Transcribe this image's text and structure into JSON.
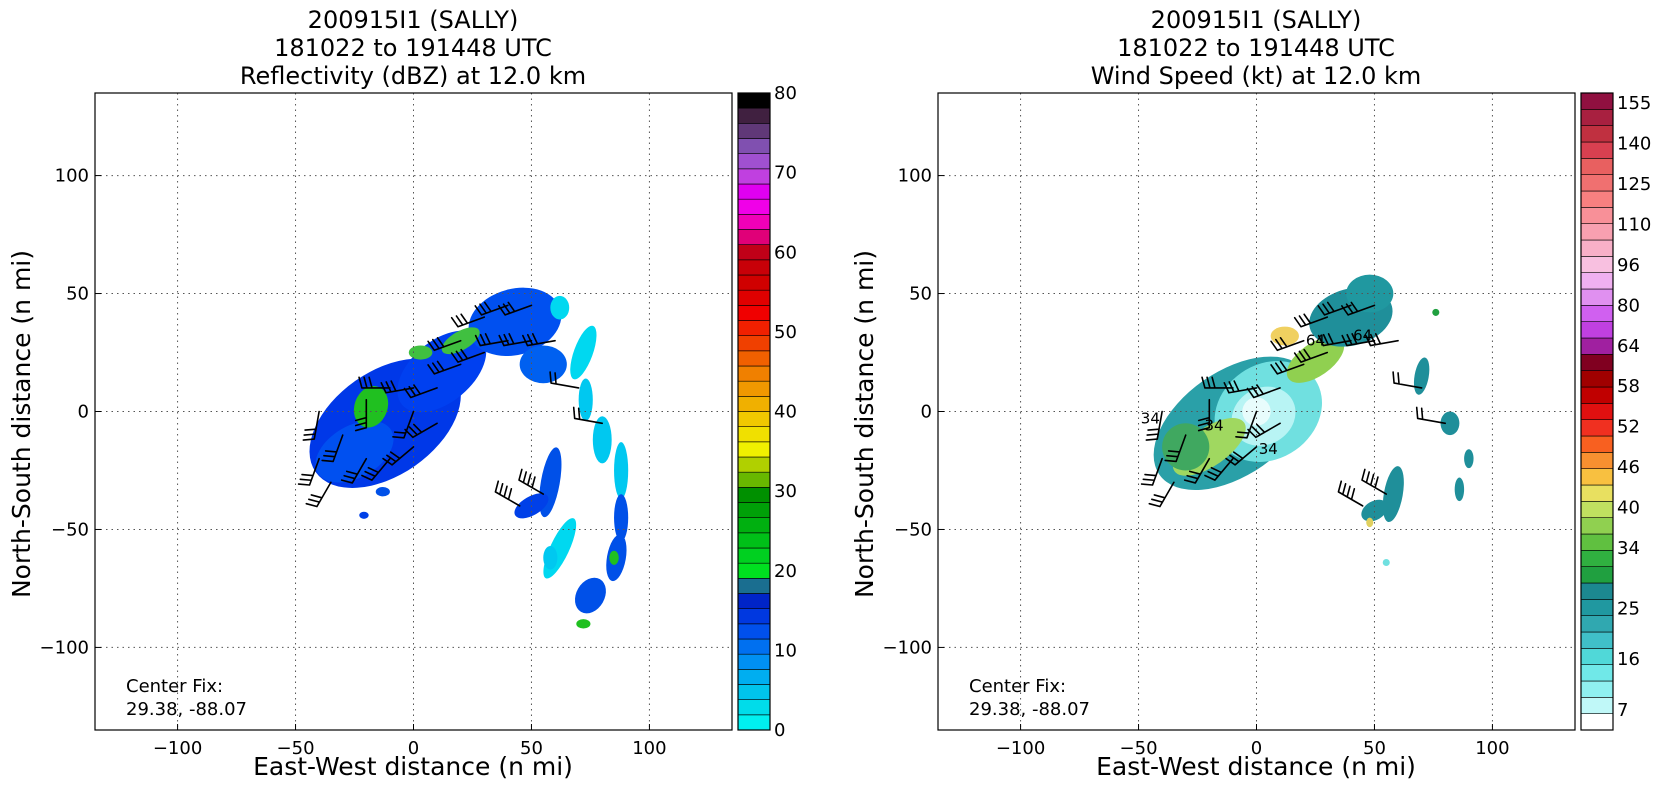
{
  "chart_data": [
    {
      "type": "heatmap",
      "title": [
        "200915I1 (SALLY)",
        "181022 to 191448 UTC",
        "Reflectivity (dBZ) at 12.0 km"
      ],
      "xlabel": "East-West distance (n mi)",
      "ylabel": "North-South distance (n mi)",
      "xlim": [
        -135,
        135
      ],
      "ylim": [
        -135,
        135
      ],
      "xticks": [
        -100,
        -50,
        0,
        50,
        100
      ],
      "yticks": [
        -100,
        -50,
        0,
        50,
        100
      ],
      "grid": true,
      "annotation": [
        "Center Fix:",
        "29.38, -88.07"
      ],
      "colorbar": {
        "min": 0,
        "max": 80,
        "ticks": [
          0,
          10,
          20,
          30,
          40,
          50,
          60,
          70,
          80
        ],
        "colors": [
          "#00f0f0",
          "#00dcea",
          "#00c4ec",
          "#00aef0",
          "#0090f2",
          "#0070f0",
          "#0050ec",
          "#0038e0",
          "#0024c8",
          "#1a6e90",
          "#00e020",
          "#00d020",
          "#00c018",
          "#00b010",
          "#00a008",
          "#009000",
          "#68b800",
          "#b0d000",
          "#f0f000",
          "#f0e000",
          "#f0c800",
          "#f0b000",
          "#f09800",
          "#f08000",
          "#f06000",
          "#f04000",
          "#f02000",
          "#f00000",
          "#e00000",
          "#d00000",
          "#c80008",
          "#c00018",
          "#e00078",
          "#f000b8",
          "#f000e8",
          "#e000f0",
          "#c040e0",
          "#a050d0",
          "#8050b0",
          "#603878",
          "#402040",
          "#000000"
        ]
      },
      "field": {
        "dominant": "#0040ee",
        "blobs": [
          {
            "x": -12,
            "y": -5,
            "rx": 36,
            "ry": 22,
            "rot": -35,
            "color": "#0038e8"
          },
          {
            "x": 12,
            "y": 17,
            "rx": 22,
            "ry": 13,
            "rot": -40,
            "color": "#0040f0"
          },
          {
            "x": 43,
            "y": 38,
            "rx": 20,
            "ry": 14,
            "rot": -15,
            "color": "#0050f0"
          },
          {
            "x": 55,
            "y": 20,
            "rx": 10,
            "ry": 8,
            "rot": 0,
            "color": "#0060f0"
          },
          {
            "x": -25,
            "y": -17,
            "rx": 18,
            "ry": 11,
            "rot": -30,
            "color": "#0050f0"
          },
          {
            "x": -18,
            "y": 2,
            "rx": 7,
            "ry": 9,
            "rot": 20,
            "color": "#20c020"
          },
          {
            "x": 20,
            "y": 30,
            "rx": 9,
            "ry": 4,
            "rot": -30,
            "color": "#40c040"
          },
          {
            "x": 3,
            "y": 25,
            "rx": 5,
            "ry": 3,
            "rot": 0,
            "color": "#40c040"
          },
          {
            "x": 62,
            "y": 44,
            "rx": 4,
            "ry": 5,
            "rot": 0,
            "color": "#00d8f0"
          },
          {
            "x": 72,
            "y": 25,
            "rx": 4,
            "ry": 12,
            "rot": 20,
            "color": "#00d8f0"
          },
          {
            "x": 73,
            "y": 5,
            "rx": 3,
            "ry": 9,
            "rot": 0,
            "color": "#00c8f0"
          },
          {
            "x": 80,
            "y": -12,
            "rx": 4,
            "ry": 10,
            "rot": 0,
            "color": "#00c8f0"
          },
          {
            "x": 88,
            "y": -25,
            "rx": 3,
            "ry": 12,
            "rot": 0,
            "color": "#00c8f0"
          },
          {
            "x": 88,
            "y": -45,
            "rx": 3,
            "ry": 10,
            "rot": 0,
            "color": "#0050e8"
          },
          {
            "x": 86,
            "y": -62,
            "rx": 4,
            "ry": 10,
            "rot": 10,
            "color": "#0050e8"
          },
          {
            "x": 85,
            "y": -62,
            "rx": 2,
            "ry": 3,
            "rot": 0,
            "color": "#20c020"
          },
          {
            "x": 75,
            "y": -78,
            "rx": 6,
            "ry": 8,
            "rot": 30,
            "color": "#0050e8"
          },
          {
            "x": 72,
            "y": -90,
            "rx": 3,
            "ry": 2,
            "rot": 0,
            "color": "#20c020"
          },
          {
            "x": 58,
            "y": -30,
            "rx": 4,
            "ry": 15,
            "rot": 10,
            "color": "#0050e8"
          },
          {
            "x": 50,
            "y": -40,
            "rx": 8,
            "ry": 4,
            "rot": -30,
            "color": "#0040e8"
          },
          {
            "x": 62,
            "y": -58,
            "rx": 4,
            "ry": 14,
            "rot": 25,
            "color": "#00d8f0"
          },
          {
            "x": 58,
            "y": -62,
            "rx": 3,
            "ry": 5,
            "rot": 0,
            "color": "#00c8f0"
          },
          {
            "x": -21,
            "y": -44,
            "rx": 2,
            "ry": 1.5,
            "rot": 0,
            "color": "#0040e8"
          },
          {
            "x": -13,
            "y": -34,
            "rx": 3,
            "ry": 2,
            "rot": 0,
            "color": "#0050e8"
          }
        ]
      },
      "barbs": [
        {
          "x": -30,
          "y": -10,
          "dir": 200,
          "n": 3
        },
        {
          "x": -20,
          "y": -20,
          "dir": 210,
          "n": 3
        },
        {
          "x": -10,
          "y": -20,
          "dir": 220,
          "n": 3
        },
        {
          "x": 0,
          "y": -15,
          "dir": 230,
          "n": 3
        },
        {
          "x": 10,
          "y": -5,
          "dir": 240,
          "n": 3
        },
        {
          "x": 10,
          "y": 10,
          "dir": 250,
          "n": 3
        },
        {
          "x": 0,
          "y": 10,
          "dir": 260,
          "n": 3
        },
        {
          "x": -10,
          "y": 10,
          "dir": 270,
          "n": 3
        },
        {
          "x": -20,
          "y": 5,
          "dir": 180,
          "n": 3
        },
        {
          "x": -40,
          "y": 0,
          "dir": 190,
          "n": 3
        },
        {
          "x": -40,
          "y": -20,
          "dir": 200,
          "n": 3
        },
        {
          "x": -35,
          "y": -30,
          "dir": 210,
          "n": 3
        },
        {
          "x": 20,
          "y": 20,
          "dir": 250,
          "n": 3
        },
        {
          "x": 30,
          "y": 25,
          "dir": 250,
          "n": 3
        },
        {
          "x": 40,
          "y": 30,
          "dir": 260,
          "n": 3
        },
        {
          "x": 50,
          "y": 30,
          "dir": 260,
          "n": 3
        },
        {
          "x": 40,
          "y": 45,
          "dir": 250,
          "n": 3
        },
        {
          "x": 50,
          "y": 45,
          "dir": 250,
          "n": 3
        },
        {
          "x": 60,
          "y": 30,
          "dir": 260,
          "n": 3
        },
        {
          "x": 70,
          "y": 10,
          "dir": 280,
          "n": 2
        },
        {
          "x": 80,
          "y": -5,
          "dir": 280,
          "n": 2
        },
        {
          "x": 45,
          "y": -40,
          "dir": 300,
          "n": 4
        },
        {
          "x": 55,
          "y": -35,
          "dir": 300,
          "n": 4
        },
        {
          "x": 30,
          "y": 40,
          "dir": 250,
          "n": 3
        },
        {
          "x": 20,
          "y": 30,
          "dir": 250,
          "n": 3
        },
        {
          "x": 0,
          "y": 0,
          "dir": 200,
          "n": 2
        }
      ]
    },
    {
      "type": "heatmap",
      "title": [
        "200915I1 (SALLY)",
        "181022 to 191448 UTC",
        "Wind Speed (kt) at 12.0 km"
      ],
      "xlabel": "East-West distance (n mi)",
      "ylabel": "North-South distance (n mi)",
      "xlim": [
        -135,
        135
      ],
      "ylim": [
        -135,
        135
      ],
      "xticks": [
        -100,
        -50,
        0,
        50,
        100
      ],
      "yticks": [
        -100,
        -50,
        0,
        50,
        100
      ],
      "grid": true,
      "annotation": [
        "Center Fix:",
        "29.38, -88.07"
      ],
      "contour_labels": [
        "34",
        "34",
        "34",
        "64",
        "64"
      ],
      "colorbar": {
        "min": 4,
        "max": 160,
        "ticks": [
          7,
          16,
          25,
          34,
          40,
          46,
          52,
          58,
          64,
          80,
          96,
          110,
          125,
          140,
          155
        ],
        "tick_positions": [
          1,
          3.5,
          6,
          9,
          11,
          13,
          15,
          17,
          19,
          21,
          23,
          25,
          27,
          29,
          31
        ],
        "colors": [
          "#ffffff",
          "#c0f8f8",
          "#90f0f0",
          "#70e8e8",
          "#50d8d8",
          "#40c0c8",
          "#30a8b0",
          "#2098a0",
          "#1c8890",
          "#20a040",
          "#30b040",
          "#60c040",
          "#90d050",
          "#c0e060",
          "#e8e060",
          "#f8c040",
          "#f89030",
          "#f86020",
          "#f03020",
          "#e01010",
          "#c00000",
          "#a00000",
          "#800020",
          "#a020a0",
          "#c040e0",
          "#d060f0",
          "#e090f0",
          "#f0b0f0",
          "#f8c0e0",
          "#f8b0c8",
          "#f8a0b0",
          "#f89098",
          "#f88080",
          "#f07070",
          "#e86060",
          "#d84050",
          "#c03040",
          "#a82040",
          "#901040"
        ]
      },
      "field": {
        "dominant": "#1f8f9a",
        "blobs": [
          {
            "x": -10,
            "y": -5,
            "rx": 38,
            "ry": 22,
            "rot": -35,
            "color": "#2aa0a8"
          },
          {
            "x": 5,
            "y": 0,
            "rx": 24,
            "ry": 20,
            "rot": -35,
            "color": "#70e0e0"
          },
          {
            "x": 3,
            "y": -2,
            "rx": 14,
            "ry": 12,
            "rot": -30,
            "color": "#b8f4f4"
          },
          {
            "x": 0,
            "y": 0,
            "rx": 6,
            "ry": 6,
            "rot": 0,
            "color": "#e8fcfc"
          },
          {
            "x": -20,
            "y": -15,
            "rx": 18,
            "ry": 8,
            "rot": -35,
            "color": "#a0d860"
          },
          {
            "x": -30,
            "y": -15,
            "rx": 10,
            "ry": 10,
            "rot": -30,
            "color": "#40a860"
          },
          {
            "x": 25,
            "y": 22,
            "rx": 14,
            "ry": 7,
            "rot": -35,
            "color": "#90d050"
          },
          {
            "x": 12,
            "y": 32,
            "rx": 6,
            "ry": 4,
            "rot": 0,
            "color": "#f0d060"
          },
          {
            "x": 40,
            "y": 40,
            "rx": 18,
            "ry": 12,
            "rot": -15,
            "color": "#1f8f9a"
          },
          {
            "x": 48,
            "y": 50,
            "rx": 10,
            "ry": 8,
            "rot": 0,
            "color": "#2098a0"
          },
          {
            "x": 70,
            "y": 15,
            "rx": 3,
            "ry": 8,
            "rot": 10,
            "color": "#1f8f9a"
          },
          {
            "x": 82,
            "y": -5,
            "rx": 4,
            "ry": 5,
            "rot": 0,
            "color": "#1f8f9a"
          },
          {
            "x": 90,
            "y": -20,
            "rx": 2,
            "ry": 4,
            "rot": 0,
            "color": "#1f8f9a"
          },
          {
            "x": 86,
            "y": -33,
            "rx": 2,
            "ry": 5,
            "rot": 0,
            "color": "#1f8f9a"
          },
          {
            "x": 58,
            "y": -35,
            "rx": 4,
            "ry": 12,
            "rot": 10,
            "color": "#1f8f9a"
          },
          {
            "x": 50,
            "y": -42,
            "rx": 6,
            "ry": 4,
            "rot": -30,
            "color": "#1f8f9a"
          },
          {
            "x": 48,
            "y": -47,
            "rx": 1.5,
            "ry": 2,
            "rot": 0,
            "color": "#e0d060"
          },
          {
            "x": 76,
            "y": 42,
            "rx": 1.5,
            "ry": 1.5,
            "rot": 0,
            "color": "#20a040"
          },
          {
            "x": 55,
            "y": -64,
            "rx": 1.5,
            "ry": 1.5,
            "rot": 0,
            "color": "#70e0e0"
          }
        ]
      },
      "barbs": [
        {
          "x": -30,
          "y": -10,
          "dir": 200,
          "n": 3
        },
        {
          "x": -20,
          "y": -20,
          "dir": 210,
          "n": 3
        },
        {
          "x": -10,
          "y": -20,
          "dir": 220,
          "n": 3
        },
        {
          "x": 0,
          "y": -15,
          "dir": 230,
          "n": 3
        },
        {
          "x": 10,
          "y": -5,
          "dir": 240,
          "n": 3
        },
        {
          "x": 10,
          "y": 10,
          "dir": 250,
          "n": 3
        },
        {
          "x": 0,
          "y": 10,
          "dir": 260,
          "n": 3
        },
        {
          "x": -10,
          "y": 10,
          "dir": 270,
          "n": 3
        },
        {
          "x": -20,
          "y": 5,
          "dir": 180,
          "n": 3
        },
        {
          "x": -40,
          "y": 0,
          "dir": 190,
          "n": 3
        },
        {
          "x": -40,
          "y": -20,
          "dir": 200,
          "n": 3
        },
        {
          "x": -35,
          "y": -30,
          "dir": 210,
          "n": 3
        },
        {
          "x": 20,
          "y": 20,
          "dir": 250,
          "n": 3
        },
        {
          "x": 30,
          "y": 25,
          "dir": 250,
          "n": 3
        },
        {
          "x": 40,
          "y": 30,
          "dir": 260,
          "n": 3
        },
        {
          "x": 50,
          "y": 30,
          "dir": 260,
          "n": 3
        },
        {
          "x": 40,
          "y": 45,
          "dir": 250,
          "n": 3
        },
        {
          "x": 50,
          "y": 45,
          "dir": 250,
          "n": 3
        },
        {
          "x": 60,
          "y": 30,
          "dir": 260,
          "n": 3
        },
        {
          "x": 70,
          "y": 10,
          "dir": 280,
          "n": 2
        },
        {
          "x": 80,
          "y": -5,
          "dir": 280,
          "n": 2
        },
        {
          "x": 45,
          "y": -40,
          "dir": 300,
          "n": 4
        },
        {
          "x": 55,
          "y": -35,
          "dir": 300,
          "n": 4
        },
        {
          "x": 30,
          "y": 40,
          "dir": 250,
          "n": 3
        },
        {
          "x": 20,
          "y": 30,
          "dir": 250,
          "n": 3
        },
        {
          "x": 0,
          "y": 0,
          "dir": 200,
          "n": 2
        }
      ]
    }
  ]
}
